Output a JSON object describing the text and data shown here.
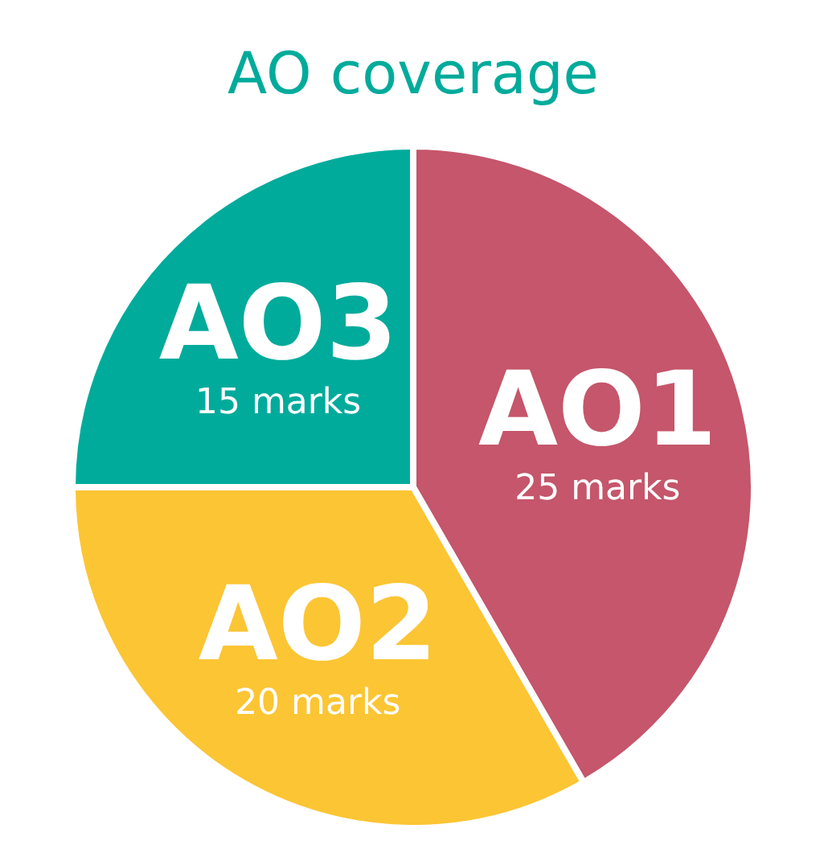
{
  "chart_data": {
    "type": "pie",
    "title": "AO coverage",
    "categories": [
      "AO1",
      "AO2",
      "AO3"
    ],
    "values": [
      25,
      20,
      15
    ],
    "colors": [
      "#c5566b",
      "#fcc534",
      "#00ab9b"
    ],
    "value_labels": [
      "25 marks",
      "20 marks",
      "15 marks"
    ]
  }
}
